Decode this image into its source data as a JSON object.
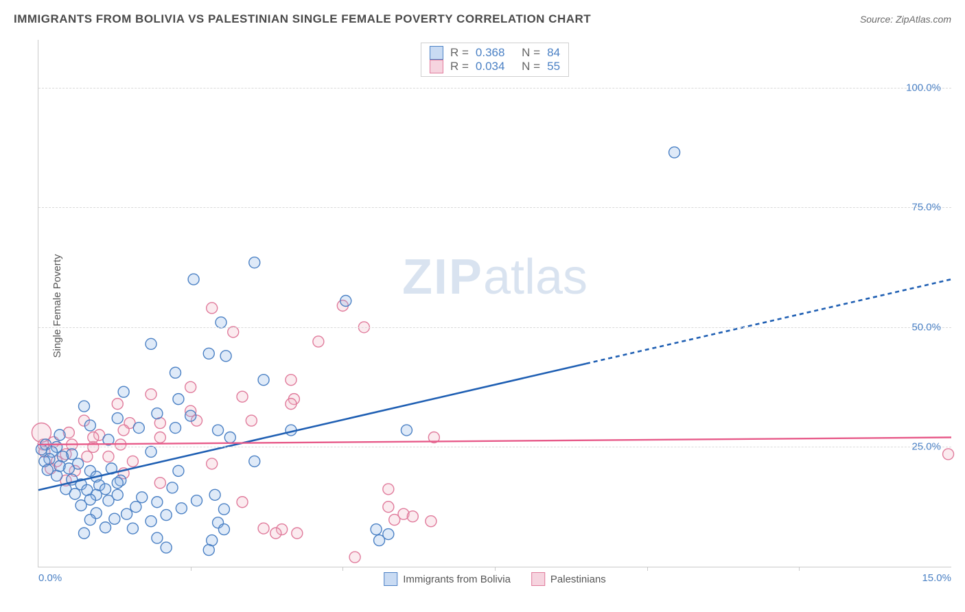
{
  "title": "IMMIGRANTS FROM BOLIVIA VS PALESTINIAN SINGLE FEMALE POVERTY CORRELATION CHART",
  "source": "Source: ZipAtlas.com",
  "watermark_bold": "ZIP",
  "watermark_light": "atlas",
  "chart": {
    "type": "scatter",
    "ylabel": "Single Female Poverty",
    "xlim": [
      0.0,
      15.0
    ],
    "ylim": [
      0.0,
      110.0
    ],
    "xticks": [
      0.0,
      15.0
    ],
    "xtick_labels": [
      "0.0%",
      "15.0%"
    ],
    "xtick_minor": [
      2.5,
      5.0,
      7.5,
      10.0,
      12.5
    ],
    "yticks": [
      25.0,
      50.0,
      75.0,
      100.0
    ],
    "ytick_labels": [
      "25.0%",
      "50.0%",
      "75.0%",
      "100.0%"
    ],
    "background_color": "#ffffff",
    "grid_color": "#d9d9d9",
    "axis_color": "#c9c9c9",
    "tick_label_color": "#4a80c4",
    "axis_label_color": "#555555",
    "marker_radius": 8,
    "marker_stroke_width": 1.4,
    "marker_fill_opacity": 0.28,
    "series": [
      {
        "id": "bolivia",
        "label": "Immigrants from Bolivia",
        "marker_stroke": "#4a80c4",
        "marker_fill": "#8cb4e6",
        "trend_color": "#1f5fb3",
        "trend_width": 2.6,
        "trend_solid_x_end": 9.0,
        "correlation_R": "0.368",
        "correlation_N": "84",
        "trend_start": {
          "x": 0.0,
          "y": 16.0
        },
        "trend_end": {
          "x": 15.0,
          "y": 60.0
        },
        "points": [
          {
            "x": 10.45,
            "y": 86.5
          },
          {
            "x": 3.55,
            "y": 63.5
          },
          {
            "x": 2.55,
            "y": 60.0
          },
          {
            "x": 5.05,
            "y": 55.5
          },
          {
            "x": 3.0,
            "y": 51.0
          },
          {
            "x": 1.85,
            "y": 46.5
          },
          {
            "x": 2.8,
            "y": 44.5
          },
          {
            "x": 3.08,
            "y": 44.0
          },
          {
            "x": 2.25,
            "y": 40.5
          },
          {
            "x": 3.7,
            "y": 39.0
          },
          {
            "x": 1.4,
            "y": 36.5
          },
          {
            "x": 2.3,
            "y": 35.0
          },
          {
            "x": 1.95,
            "y": 32.0
          },
          {
            "x": 2.5,
            "y": 31.5
          },
          {
            "x": 1.3,
            "y": 31.0
          },
          {
            "x": 0.75,
            "y": 33.5
          },
          {
            "x": 0.85,
            "y": 29.5
          },
          {
            "x": 1.65,
            "y": 29.0
          },
          {
            "x": 2.25,
            "y": 29.0
          },
          {
            "x": 2.95,
            "y": 28.5
          },
          {
            "x": 4.15,
            "y": 28.5
          },
          {
            "x": 6.05,
            "y": 28.5
          },
          {
            "x": 0.35,
            "y": 27.5
          },
          {
            "x": 1.15,
            "y": 26.5
          },
          {
            "x": 3.15,
            "y": 27.0
          },
          {
            "x": 1.85,
            "y": 24.0
          },
          {
            "x": 0.12,
            "y": 25.5
          },
          {
            "x": 0.3,
            "y": 25.0
          },
          {
            "x": 0.05,
            "y": 24.5
          },
          {
            "x": 0.22,
            "y": 24.0
          },
          {
            "x": 0.55,
            "y": 23.5
          },
          {
            "x": 0.18,
            "y": 22.5
          },
          {
            "x": 0.4,
            "y": 23.0
          },
          {
            "x": 0.1,
            "y": 22.0
          },
          {
            "x": 0.65,
            "y": 21.5
          },
          {
            "x": 3.55,
            "y": 22.0
          },
          {
            "x": 0.5,
            "y": 20.5
          },
          {
            "x": 0.85,
            "y": 20.0
          },
          {
            "x": 1.2,
            "y": 20.5
          },
          {
            "x": 2.3,
            "y": 20.0
          },
          {
            "x": 0.3,
            "y": 19.0
          },
          {
            "x": 0.55,
            "y": 18.2
          },
          {
            "x": 0.95,
            "y": 18.8
          },
          {
            "x": 1.35,
            "y": 18.0
          },
          {
            "x": 0.7,
            "y": 17.2
          },
          {
            "x": 1.0,
            "y": 17.0
          },
          {
            "x": 1.3,
            "y": 17.5
          },
          {
            "x": 0.45,
            "y": 16.2
          },
          {
            "x": 0.8,
            "y": 16.0
          },
          {
            "x": 1.1,
            "y": 16.2
          },
          {
            "x": 2.2,
            "y": 16.5
          },
          {
            "x": 0.6,
            "y": 15.2
          },
          {
            "x": 0.95,
            "y": 15.0
          },
          {
            "x": 1.3,
            "y": 15.0
          },
          {
            "x": 1.7,
            "y": 14.5
          },
          {
            "x": 2.9,
            "y": 15.0
          },
          {
            "x": 0.85,
            "y": 14.0
          },
          {
            "x": 1.15,
            "y": 13.8
          },
          {
            "x": 1.95,
            "y": 13.5
          },
          {
            "x": 2.6,
            "y": 13.8
          },
          {
            "x": 0.7,
            "y": 12.8
          },
          {
            "x": 1.6,
            "y": 12.5
          },
          {
            "x": 2.35,
            "y": 12.2
          },
          {
            "x": 3.05,
            "y": 12.0
          },
          {
            "x": 0.95,
            "y": 11.2
          },
          {
            "x": 1.45,
            "y": 11.0
          },
          {
            "x": 2.1,
            "y": 10.8
          },
          {
            "x": 1.25,
            "y": 10.0
          },
          {
            "x": 1.85,
            "y": 9.5
          },
          {
            "x": 2.95,
            "y": 9.2
          },
          {
            "x": 0.85,
            "y": 9.8
          },
          {
            "x": 1.1,
            "y": 8.2
          },
          {
            "x": 1.55,
            "y": 8.0
          },
          {
            "x": 3.05,
            "y": 7.8
          },
          {
            "x": 5.55,
            "y": 7.8
          },
          {
            "x": 5.75,
            "y": 6.8
          },
          {
            "x": 0.75,
            "y": 7.0
          },
          {
            "x": 1.95,
            "y": 6.0
          },
          {
            "x": 2.85,
            "y": 5.5
          },
          {
            "x": 5.6,
            "y": 5.5
          },
          {
            "x": 2.1,
            "y": 4.0
          },
          {
            "x": 2.8,
            "y": 3.5
          },
          {
            "x": 0.35,
            "y": 21.0
          },
          {
            "x": 0.15,
            "y": 20.2
          }
        ]
      },
      {
        "id": "palestinian",
        "label": "Palestinians",
        "marker_stroke": "#e07a9b",
        "marker_fill": "#f2b6c7",
        "trend_color": "#e75a89",
        "trend_width": 2.4,
        "trend_solid_x_end": 15.0,
        "correlation_R": "0.034",
        "correlation_N": "55",
        "trend_start": {
          "x": 0.0,
          "y": 25.5
        },
        "trend_end": {
          "x": 15.0,
          "y": 27.0
        },
        "points": [
          {
            "x": 5.0,
            "y": 54.5
          },
          {
            "x": 2.85,
            "y": 54.0
          },
          {
            "x": 3.2,
            "y": 49.0
          },
          {
            "x": 5.35,
            "y": 50.0
          },
          {
            "x": 4.6,
            "y": 47.0
          },
          {
            "x": 4.15,
            "y": 39.0
          },
          {
            "x": 2.5,
            "y": 37.5
          },
          {
            "x": 1.85,
            "y": 36.0
          },
          {
            "x": 3.35,
            "y": 35.5
          },
          {
            "x": 4.2,
            "y": 35.0
          },
          {
            "x": 1.3,
            "y": 34.0
          },
          {
            "x": 2.5,
            "y": 32.5
          },
          {
            "x": 4.15,
            "y": 34.0
          },
          {
            "x": 0.75,
            "y": 30.5
          },
          {
            "x": 1.5,
            "y": 30.0
          },
          {
            "x": 2.0,
            "y": 30.0
          },
          {
            "x": 2.6,
            "y": 30.5
          },
          {
            "x": 3.5,
            "y": 30.5
          },
          {
            "x": 0.5,
            "y": 28.0
          },
          {
            "x": 1.0,
            "y": 27.5
          },
          {
            "x": 1.4,
            "y": 28.5
          },
          {
            "x": 2.0,
            "y": 27.0
          },
          {
            "x": 6.5,
            "y": 27.0
          },
          {
            "x": 0.08,
            "y": 25.5
          },
          {
            "x": 0.25,
            "y": 26.0
          },
          {
            "x": 0.55,
            "y": 25.5
          },
          {
            "x": 0.9,
            "y": 25.0
          },
          {
            "x": 1.35,
            "y": 25.5
          },
          {
            "x": 0.1,
            "y": 24.0
          },
          {
            "x": 0.45,
            "y": 23.5
          },
          {
            "x": 0.8,
            "y": 23.0
          },
          {
            "x": 1.15,
            "y": 23.0
          },
          {
            "x": 14.95,
            "y": 23.5
          },
          {
            "x": 0.05,
            "y": 28.0,
            "r": 14
          },
          {
            "x": 0.3,
            "y": 22.0
          },
          {
            "x": 1.55,
            "y": 22.0
          },
          {
            "x": 2.85,
            "y": 21.5
          },
          {
            "x": 0.2,
            "y": 20.5
          },
          {
            "x": 0.6,
            "y": 20.0
          },
          {
            "x": 1.4,
            "y": 19.5
          },
          {
            "x": 0.45,
            "y": 18.0
          },
          {
            "x": 2.0,
            "y": 17.5
          },
          {
            "x": 5.75,
            "y": 16.2
          },
          {
            "x": 3.35,
            "y": 13.5
          },
          {
            "x": 5.75,
            "y": 12.5
          },
          {
            "x": 6.0,
            "y": 11.0
          },
          {
            "x": 6.15,
            "y": 10.5
          },
          {
            "x": 5.85,
            "y": 9.8
          },
          {
            "x": 6.45,
            "y": 9.5
          },
          {
            "x": 3.7,
            "y": 8.0
          },
          {
            "x": 4.0,
            "y": 7.8
          },
          {
            "x": 4.25,
            "y": 7.0
          },
          {
            "x": 3.9,
            "y": 7.0
          },
          {
            "x": 5.2,
            "y": 2.0
          },
          {
            "x": 0.9,
            "y": 27.0
          }
        ]
      }
    ]
  },
  "top_legend_labels": {
    "R": "R =",
    "N": "N ="
  },
  "bottom_legend": {
    "bolivia_swatch_fill": "#c9dbf3",
    "bolivia_swatch_border": "#4a80c4",
    "palestinian_swatch_fill": "#f6d4df",
    "palestinian_swatch_border": "#e07a9b"
  }
}
